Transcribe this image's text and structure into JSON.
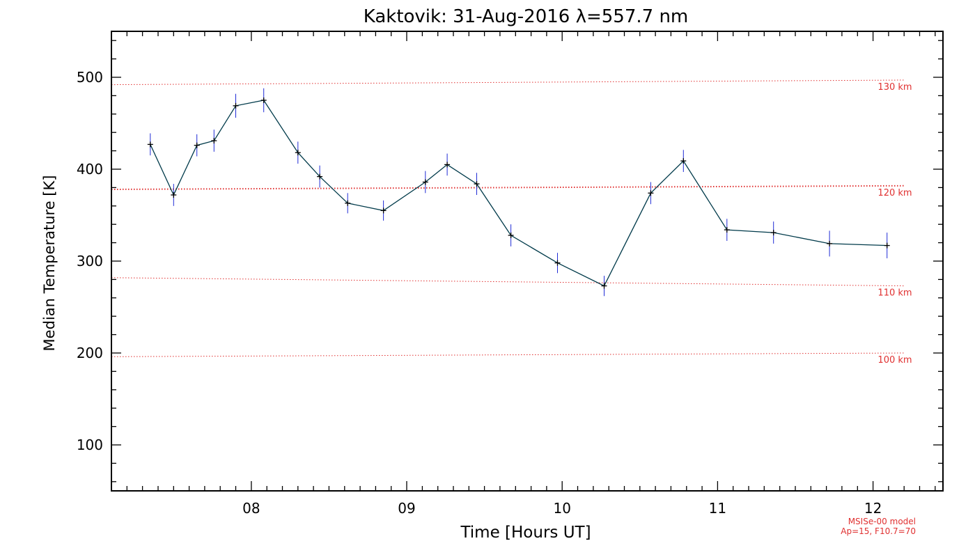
{
  "chart_data": {
    "type": "line",
    "title": "Kaktovik: 31-Aug-2016 λ=557.7 nm",
    "xlabel": "Time [Hours UT]",
    "ylabel": "Median Temperature [K]",
    "xlim": [
      7.1,
      12.45
    ],
    "ylim": [
      50,
      550
    ],
    "x_ticks": [
      8,
      9,
      10,
      11,
      12
    ],
    "x_tick_labels": [
      "08",
      "09",
      "10",
      "11",
      "12"
    ],
    "y_ticks": [
      100,
      200,
      300,
      400,
      500
    ],
    "y_tick_labels": [
      "100",
      "200",
      "300",
      "400",
      "500"
    ],
    "series": [
      {
        "x": [
          7.35,
          7.5,
          7.65,
          7.76,
          7.9,
          8.08,
          8.3,
          8.44,
          8.62,
          8.85,
          9.12,
          9.26,
          9.45,
          9.67,
          9.97,
          10.27,
          10.57,
          10.78,
          11.06,
          11.36,
          11.72,
          12.09
        ],
        "y": [
          427,
          372,
          426,
          431,
          469,
          475,
          418,
          392,
          363,
          355,
          386,
          405,
          384,
          328,
          298,
          273,
          374,
          409,
          334,
          331,
          319,
          317
        ],
        "err": [
          12,
          12,
          12,
          12,
          13,
          13,
          12,
          12,
          11,
          11,
          12,
          12,
          12,
          12,
          11,
          11,
          12,
          12,
          12,
          12,
          14,
          14
        ],
        "color": "#003a4a",
        "error_color": "#1f2bd6"
      }
    ],
    "reference_lines": [
      {
        "label": "130 km",
        "x": [
          7.1,
          12.2
        ],
        "y": [
          492,
          497
        ]
      },
      {
        "label": "120 km",
        "x": [
          7.1,
          12.2
        ],
        "y": [
          378,
          382
        ]
      },
      {
        "label": "110 km",
        "x": [
          7.1,
          12.2
        ],
        "y": [
          282,
          273
        ]
      },
      {
        "label": "100 km",
        "x": [
          7.1,
          12.2
        ],
        "y": [
          196,
          200
        ]
      }
    ],
    "reference_color": "#e03030",
    "footnote": [
      "MSISe-00 model",
      "Ap=15, F10.7=70"
    ],
    "grid": false
  }
}
